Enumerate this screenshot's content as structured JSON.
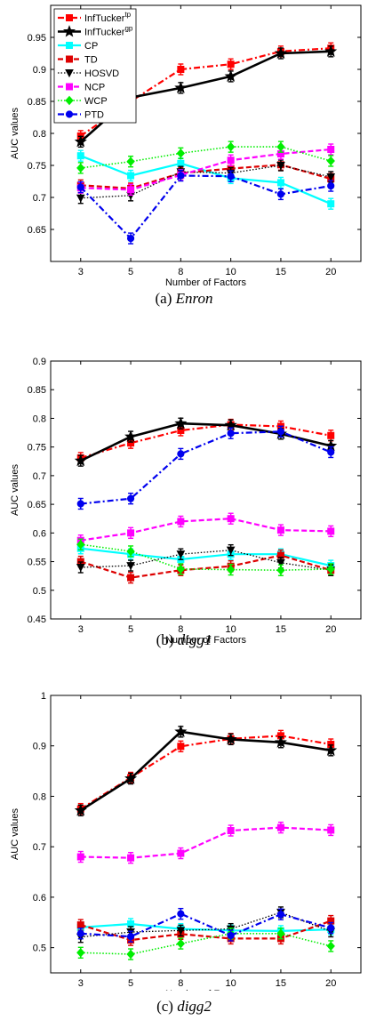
{
  "series_styles": [
    {
      "name": "InfTucker",
      "sup": "tp",
      "color": "#ff0000",
      "dash": "7,3,2,3",
      "width": 2.2,
      "marker": "square"
    },
    {
      "name": "InfTucker",
      "sup": "gp",
      "color": "#000000",
      "dash": "",
      "width": 2.6,
      "marker": "star"
    },
    {
      "name": "CP",
      "sup": "",
      "color": "#00ffff",
      "dash": "",
      "width": 2.2,
      "marker": "square"
    },
    {
      "name": "TD",
      "sup": "",
      "color": "#dd0000",
      "dash": "6,3",
      "width": 2.2,
      "marker": "square"
    },
    {
      "name": "HOSVD",
      "sup": "",
      "color": "#000000",
      "dash": "1.5,2",
      "width": 1.3,
      "marker": "triangle-down"
    },
    {
      "name": "NCP",
      "sup": "",
      "color": "#ff00ff",
      "dash": "6,3",
      "width": 2.2,
      "marker": "square"
    },
    {
      "name": "WCP",
      "sup": "",
      "color": "#00ee00",
      "dash": "1.5,2",
      "width": 1.6,
      "marker": "diamond"
    },
    {
      "name": "PTD",
      "sup": "",
      "color": "#0000ee",
      "dash": "7,3,2,3",
      "width": 2.2,
      "marker": "circle"
    }
  ],
  "chart_data": [
    {
      "type": "line",
      "caption_label": "(a)",
      "caption_dataset": "Enron",
      "xlabel": "Number of Factors",
      "ylabel": "AUC values",
      "x": [
        3,
        5,
        8,
        10,
        15,
        20
      ],
      "ylim": [
        0.6,
        1.0
      ],
      "yticks": [
        0.65,
        0.7,
        0.75,
        0.8,
        0.85,
        0.9,
        0.95
      ],
      "ytick_labels": [
        "0.65",
        "0.7",
        "0.75",
        "0.8",
        "0.85",
        "0.9",
        "0.95"
      ],
      "legend": "top-left",
      "series": [
        {
          "name": "InfTucker^tp",
          "values": [
            0.796,
            0.85,
            0.9,
            0.908,
            0.928,
            0.933
          ]
        },
        {
          "name": "InfTucker^gp",
          "values": [
            0.787,
            0.856,
            0.871,
            0.889,
            0.925,
            0.928
          ]
        },
        {
          "name": "CP",
          "values": [
            0.765,
            0.734,
            0.753,
            0.73,
            0.723,
            0.69
          ]
        },
        {
          "name": "TD",
          "values": [
            0.719,
            0.714,
            0.738,
            0.745,
            0.751,
            0.729
          ]
        },
        {
          "name": "HOSVD",
          "values": [
            0.699,
            0.703,
            0.74,
            0.738,
            0.75,
            0.732
          ]
        },
        {
          "name": "NCP",
          "values": [
            0.715,
            0.712,
            0.735,
            0.758,
            0.768,
            0.775
          ]
        },
        {
          "name": "WCP",
          "values": [
            0.746,
            0.756,
            0.769,
            0.779,
            0.779,
            0.757
          ]
        },
        {
          "name": "PTD",
          "values": [
            0.716,
            0.636,
            0.734,
            0.733,
            0.705,
            0.718
          ]
        }
      ]
    },
    {
      "type": "line",
      "caption_label": "(b)",
      "caption_dataset": "digg1",
      "xlabel": "Number of Factors",
      "ylabel": "AUC values",
      "x": [
        3,
        5,
        8,
        10,
        15,
        20
      ],
      "ylim": [
        0.45,
        0.9
      ],
      "yticks": [
        0.45,
        0.5,
        0.55,
        0.6,
        0.65,
        0.7,
        0.75,
        0.8,
        0.85,
        0.9
      ],
      "ytick_labels": [
        "0.45",
        "0.5",
        "0.55",
        "0.6",
        "0.65",
        "0.7",
        "0.75",
        "0.8",
        "0.85",
        "0.9"
      ],
      "legend": "none",
      "series": [
        {
          "name": "InfTucker^tp",
          "values": [
            0.731,
            0.757,
            0.779,
            0.789,
            0.786,
            0.77
          ]
        },
        {
          "name": "InfTucker^gp",
          "values": [
            0.726,
            0.768,
            0.791,
            0.788,
            0.773,
            0.752
          ]
        },
        {
          "name": "CP",
          "values": [
            0.573,
            0.563,
            0.554,
            0.563,
            0.563,
            0.543
          ]
        },
        {
          "name": "TD",
          "values": [
            0.55,
            0.522,
            0.535,
            0.542,
            0.561,
            0.535
          ]
        },
        {
          "name": "HOSVD",
          "values": [
            0.54,
            0.543,
            0.563,
            0.57,
            0.548,
            0.535
          ]
        },
        {
          "name": "NCP",
          "values": [
            0.587,
            0.6,
            0.62,
            0.625,
            0.605,
            0.603
          ]
        },
        {
          "name": "WCP",
          "values": [
            0.58,
            0.568,
            0.537,
            0.536,
            0.535,
            0.537
          ]
        },
        {
          "name": "PTD",
          "values": [
            0.651,
            0.66,
            0.738,
            0.774,
            0.777,
            0.741
          ]
        }
      ]
    },
    {
      "type": "line",
      "caption_label": "(c)",
      "caption_dataset": "digg2",
      "xlabel": "Number of Factors",
      "ylabel": "AUC values",
      "x": [
        3,
        5,
        8,
        10,
        15,
        20
      ],
      "ylim": [
        0.45,
        1.0
      ],
      "yticks": [
        0.5,
        0.6,
        0.7,
        0.8,
        0.9,
        1.0
      ],
      "ytick_labels": [
        "0.5",
        "0.6",
        "0.7",
        "0.8",
        "0.9",
        "1"
      ],
      "legend": "none",
      "series": [
        {
          "name": "InfTucker^tp",
          "values": [
            0.775,
            0.837,
            0.899,
            0.914,
            0.92,
            0.903
          ]
        },
        {
          "name": "InfTucker^gp",
          "values": [
            0.772,
            0.835,
            0.928,
            0.913,
            0.907,
            0.891
          ]
        },
        {
          "name": "CP",
          "values": [
            0.54,
            0.547,
            0.537,
            0.534,
            0.533,
            0.536
          ]
        },
        {
          "name": "TD",
          "values": [
            0.545,
            0.515,
            0.527,
            0.518,
            0.518,
            0.553
          ]
        },
        {
          "name": "HOSVD",
          "values": [
            0.521,
            0.531,
            0.534,
            0.537,
            0.57,
            0.532
          ]
        },
        {
          "name": "NCP",
          "values": [
            0.68,
            0.678,
            0.687,
            0.732,
            0.738,
            0.733
          ]
        },
        {
          "name": "WCP",
          "values": [
            0.49,
            0.487,
            0.508,
            0.528,
            0.528,
            0.503
          ]
        },
        {
          "name": "PTD",
          "values": [
            0.528,
            0.522,
            0.567,
            0.524,
            0.566,
            0.539
          ]
        }
      ]
    }
  ]
}
